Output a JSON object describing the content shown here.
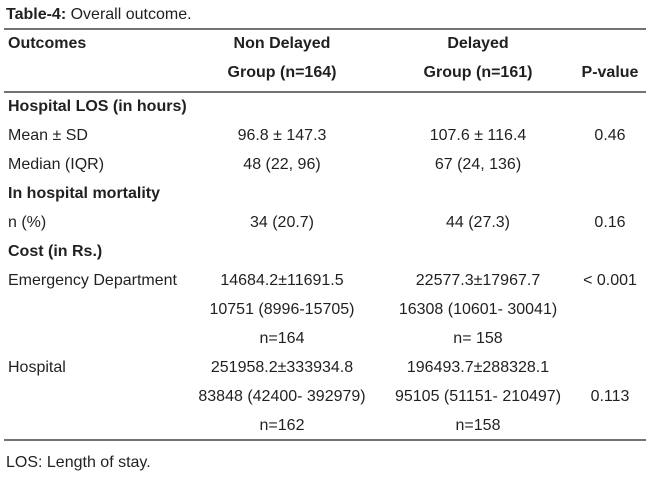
{
  "title": {
    "label": "Table-4:",
    "text": "Overall outcome."
  },
  "table": {
    "header": {
      "outcomes": "Outcomes",
      "groups": [
        [
          "Non Delayed",
          "Group (n=164)"
        ],
        [
          "Delayed",
          "Group (n=161)"
        ]
      ],
      "p_value": "P-value"
    },
    "rows": [
      {
        "section": "Hospital LOS (in hours)"
      },
      {
        "label": "Mean ± SD",
        "cells": [
          "96.8 ± 147.3",
          "107.6 ± 116.4"
        ],
        "p": "0.46"
      },
      {
        "label": "Median (IQR)",
        "cells": [
          "48 (22, 96)",
          "67 (24, 136)"
        ]
      },
      {
        "section": "In hospital mortality"
      },
      {
        "label": "n (%)",
        "cells": [
          "34 (20.7)",
          "44 (27.3)"
        ],
        "p": "0.16"
      },
      {
        "section": "Cost (in Rs.)"
      },
      {
        "label": "Emergency Department",
        "cells": [
          "14684.2±11691.5",
          "22577.3±17967.7"
        ],
        "p": "< 0.001"
      },
      {
        "cells": [
          "10751 (8996-15705)",
          "16308 (10601- 30041)"
        ]
      },
      {
        "cells": [
          "n=164",
          "n= 158"
        ]
      },
      {
        "label": "Hospital",
        "cells": [
          "251958.2±333934.8",
          "196493.7±288328.1"
        ]
      },
      {
        "cells": [
          "83848 (42400- 392979)",
          "95105 (51151- 210497)"
        ],
        "p": "0.113"
      },
      {
        "cells": [
          "n=162",
          "n=158"
        ]
      }
    ]
  },
  "footnote": "LOS: Length of stay."
}
